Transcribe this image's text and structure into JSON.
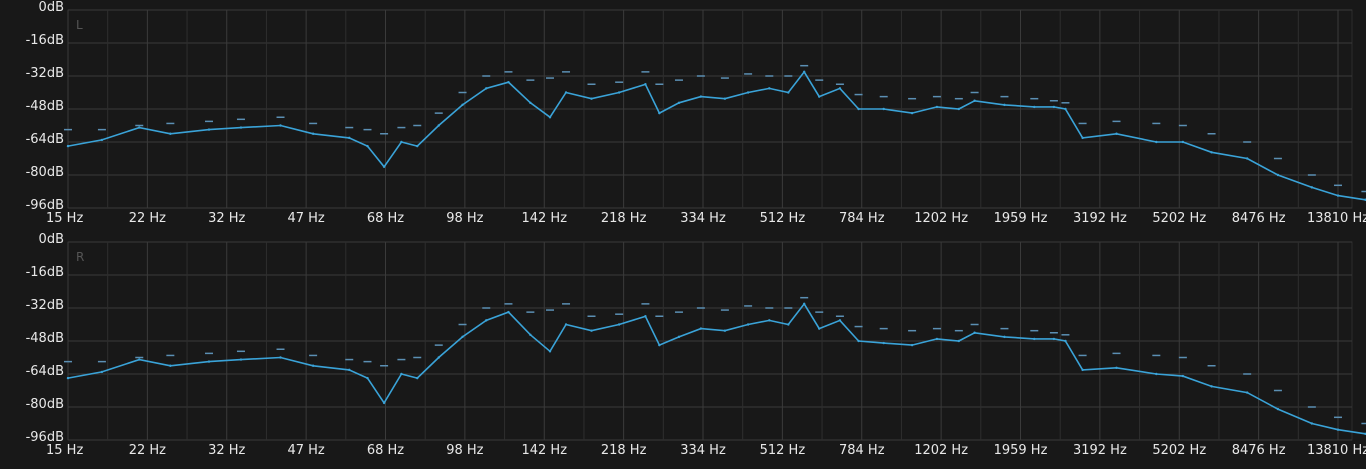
{
  "analyzer": {
    "colors": {
      "background": "#181818",
      "grid": "#3a3a3a",
      "spectrum": "#3aa3d8",
      "peak": "#5b8fb3",
      "text": "#e8e8e8"
    },
    "y_ticks": [
      "0dB",
      "-16dB",
      "-32dB",
      "-48dB",
      "-64dB",
      "-80dB",
      "-96dB"
    ],
    "x_ticks": [
      "15 Hz",
      "22 Hz",
      "32 Hz",
      "47 Hz",
      "68 Hz",
      "98 Hz",
      "142 Hz",
      "218 Hz",
      "334 Hz",
      "512 Hz",
      "784 Hz",
      "1202 Hz",
      "1959 Hz",
      "3192 Hz",
      "5202 Hz",
      "8476 Hz",
      "13810 Hz"
    ],
    "channels": [
      {
        "label": "L"
      },
      {
        "label": "R"
      }
    ]
  },
  "chart_data": [
    {
      "type": "line",
      "channel": "L",
      "xscale": "log",
      "xlim": [
        15,
        22000
      ],
      "ylim": [
        -96,
        0
      ],
      "x": [
        15,
        18,
        22,
        26,
        32,
        38,
        47,
        56,
        68,
        75,
        82,
        90,
        98,
        110,
        125,
        142,
        160,
        180,
        200,
        218,
        250,
        290,
        334,
        360,
        400,
        450,
        512,
        580,
        650,
        720,
        784,
        850,
        950,
        1050,
        1202,
        1400,
        1600,
        1800,
        1959,
        2300,
        2700,
        3000,
        3192,
        3500,
        4200,
        5202,
        6000,
        7000,
        8476,
        10000,
        12000,
        13810,
        16000,
        19000,
        22000
      ],
      "values": [
        -66,
        -63,
        -57,
        -60,
        -58,
        -57,
        -56,
        -60,
        -62,
        -66,
        -76,
        -64,
        -66,
        -56,
        -46,
        -38,
        -35,
        -45,
        -52,
        -40,
        -43,
        -40,
        -36,
        -50,
        -45,
        -42,
        -43,
        -40,
        -38,
        -40,
        -30,
        -42,
        -38,
        -48,
        -48,
        -50,
        -47,
        -48,
        -44,
        -46,
        -47,
        -47,
        -48,
        -62,
        -60,
        -64,
        -64,
        -69,
        -72,
        -80,
        -86,
        -90,
        -92,
        -94,
        -96
      ],
      "peak_values": [
        -58,
        -58,
        -56,
        -55,
        -54,
        -53,
        -52,
        -55,
        -57,
        -58,
        -60,
        -57,
        -56,
        -50,
        -40,
        -32,
        -30,
        -34,
        -33,
        -30,
        -36,
        -35,
        -30,
        -36,
        -34,
        -32,
        -33,
        -31,
        -32,
        -32,
        -27,
        -34,
        -36,
        -41,
        -42,
        -43,
        -42,
        -43,
        -40,
        -42,
        -43,
        -44,
        -45,
        -55,
        -54,
        -55,
        -56,
        -60,
        -64,
        -72,
        -80,
        -85,
        -88,
        -92,
        -95
      ]
    },
    {
      "type": "line",
      "channel": "R",
      "xscale": "log",
      "xlim": [
        15,
        22000
      ],
      "ylim": [
        -96,
        0
      ],
      "x": [
        15,
        18,
        22,
        26,
        32,
        38,
        47,
        56,
        68,
        75,
        82,
        90,
        98,
        110,
        125,
        142,
        160,
        180,
        200,
        218,
        250,
        290,
        334,
        360,
        400,
        450,
        512,
        580,
        650,
        720,
        784,
        850,
        950,
        1050,
        1202,
        1400,
        1600,
        1800,
        1959,
        2300,
        2700,
        3000,
        3192,
        3500,
        4200,
        5202,
        6000,
        7000,
        8476,
        10000,
        12000,
        13810,
        16000,
        19000,
        22000
      ],
      "values": [
        -66,
        -63,
        -57,
        -60,
        -58,
        -57,
        -56,
        -60,
        -62,
        -66,
        -78,
        -64,
        -66,
        -56,
        -46,
        -38,
        -34,
        -45,
        -53,
        -40,
        -43,
        -40,
        -36,
        -50,
        -46,
        -42,
        -43,
        -40,
        -38,
        -40,
        -30,
        -42,
        -38,
        -48,
        -49,
        -50,
        -47,
        -48,
        -44,
        -46,
        -47,
        -47,
        -48,
        -62,
        -61,
        -64,
        -65,
        -70,
        -73,
        -81,
        -88,
        -91,
        -93,
        -95,
        -96
      ],
      "peak_values": [
        -58,
        -58,
        -56,
        -55,
        -54,
        -53,
        -52,
        -55,
        -57,
        -58,
        -60,
        -57,
        -56,
        -50,
        -40,
        -32,
        -30,
        -34,
        -33,
        -30,
        -36,
        -35,
        -30,
        -36,
        -34,
        -32,
        -33,
        -31,
        -32,
        -32,
        -27,
        -34,
        -36,
        -41,
        -42,
        -43,
        -42,
        -43,
        -40,
        -42,
        -43,
        -44,
        -45,
        -55,
        -54,
        -55,
        -56,
        -60,
        -64,
        -72,
        -80,
        -85,
        -88,
        -92,
        -95
      ]
    }
  ]
}
